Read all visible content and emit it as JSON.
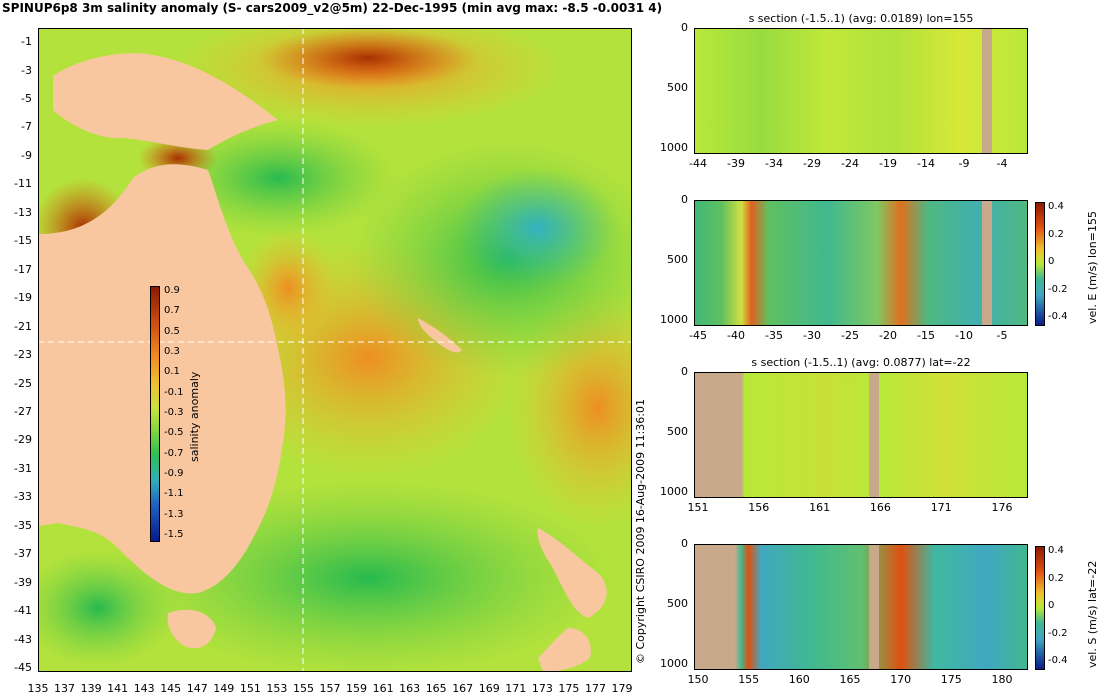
{
  "title": "SPINUP6p8 3m salinity anomaly (S- cars2009_v2@5m) 22-Dec-1995 (min avg max: -8.5 -0.0031 4)",
  "copyright": "© Copyright CSIRO 2009   16-Aug-2009 11:36:01",
  "colors": {
    "land": "#f8c7a0",
    "section_land": "#c8aa8a",
    "ocean_mid": "#b8e83a",
    "green": "#3cc34a",
    "cyan": "#38b8c8",
    "orange": "#f0a030",
    "dark_red": "#9a2a00",
    "dark_blue": "#00207a"
  },
  "map": {
    "lat_labels": [
      "-1",
      "-3",
      "-5",
      "-7",
      "-9",
      "-11",
      "-13",
      "-15",
      "-17",
      "-19",
      "-21",
      "-23",
      "-25",
      "-27",
      "-29",
      "-31",
      "-33",
      "-35",
      "-37",
      "-39",
      "-41",
      "-43",
      "-45"
    ],
    "lon_labels": [
      "135",
      "137",
      "139",
      "141",
      "143",
      "145",
      "147",
      "149",
      "151",
      "153",
      "155",
      "157",
      "159",
      "161",
      "163",
      "165",
      "167",
      "169",
      "171",
      "173",
      "175",
      "177",
      "179"
    ],
    "crosshair": {
      "lon": 155,
      "lat": -22
    }
  },
  "colorbar_map": {
    "label": "salinity anomaly",
    "ticks": [
      "0.9",
      "0.7",
      "0.5",
      "0.3",
      "0.1",
      "-0.1",
      "-0.3",
      "-0.5",
      "-0.7",
      "-0.9",
      "-1.1",
      "-1.3",
      "-1.5"
    ]
  },
  "panels": [
    {
      "title": "s section (-1.5..1) (avg: 0.0189) lon=155",
      "x_ticks": [
        "-44",
        "-39",
        "-34",
        "-29",
        "-24",
        "-19",
        "-14",
        "-9",
        "-4"
      ],
      "y_ticks": [
        "0",
        "500",
        "1000"
      ],
      "colorbar_label": "",
      "colorbar_ticks": []
    },
    {
      "title": "",
      "x_ticks": [
        "-45",
        "-40",
        "-35",
        "-30",
        "-25",
        "-20",
        "-15",
        "-10",
        "-5"
      ],
      "y_ticks": [
        "0",
        "500",
        "1000"
      ],
      "colorbar_label": "vel. E (m/s) lon=155",
      "colorbar_ticks": [
        "0.4",
        "0.2",
        "0",
        "-0.2",
        "-0.4"
      ]
    },
    {
      "title": "s section (-1.5..1) (avg: 0.0877) lat=-22",
      "x_ticks": [
        "151",
        "156",
        "161",
        "166",
        "171",
        "176"
      ],
      "y_ticks": [
        "0",
        "500",
        "1000"
      ],
      "colorbar_label": "",
      "colorbar_ticks": []
    },
    {
      "title": "",
      "x_ticks": [
        "150",
        "155",
        "160",
        "165",
        "170",
        "175",
        "180"
      ],
      "y_ticks": [
        "0",
        "500",
        "1000"
      ],
      "colorbar_label": "vel. S (m/s) lat=-22",
      "colorbar_ticks": [
        "0.4",
        "0.2",
        "0",
        "-0.2",
        "-0.4"
      ]
    }
  ]
}
